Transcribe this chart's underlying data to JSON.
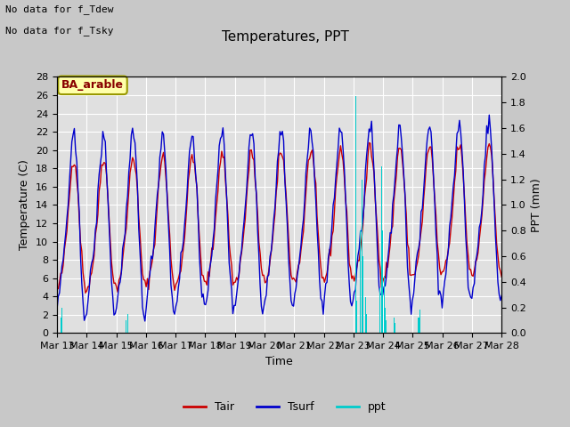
{
  "title": "Temperatures, PPT",
  "xlabel": "Time",
  "ylabel_left": "Temperature (C)",
  "ylabel_right": "PPT (mm)",
  "annotation1": "No data for f_Tdew",
  "annotation2": "No data for f_Tsky",
  "location_label": "BA_arable",
  "legend_entries": [
    "Tair",
    "Tsurf",
    "ppt"
  ],
  "tair_color": "#cc0000",
  "tsurf_color": "#0000cc",
  "ppt_color": "#00cccc",
  "fig_bg_color": "#c8c8c8",
  "plot_bg_color": "#e0e0e0",
  "ylim_left": [
    0,
    28
  ],
  "ylim_right": [
    0.0,
    2.0
  ],
  "xtick_labels": [
    "Mar 13",
    "Mar 14",
    "Mar 15",
    "Mar 16",
    "Mar 17",
    "Mar 18",
    "Mar 19",
    "Mar 20",
    "Mar 21",
    "Mar 22",
    "Mar 23",
    "Mar 24",
    "Mar 25",
    "Mar 26",
    "Mar 27",
    "Mar 28"
  ],
  "yticks_left": [
    0,
    2,
    4,
    6,
    8,
    10,
    12,
    14,
    16,
    18,
    20,
    22,
    24,
    26,
    28
  ],
  "yticks_right": [
    0.0,
    0.2,
    0.4,
    0.6,
    0.8,
    1.0,
    1.2,
    1.4,
    1.6,
    1.8,
    2.0
  ],
  "grid_color": "#ffffff",
  "label_fontsize": 9,
  "tick_fontsize": 8,
  "title_fontsize": 11
}
